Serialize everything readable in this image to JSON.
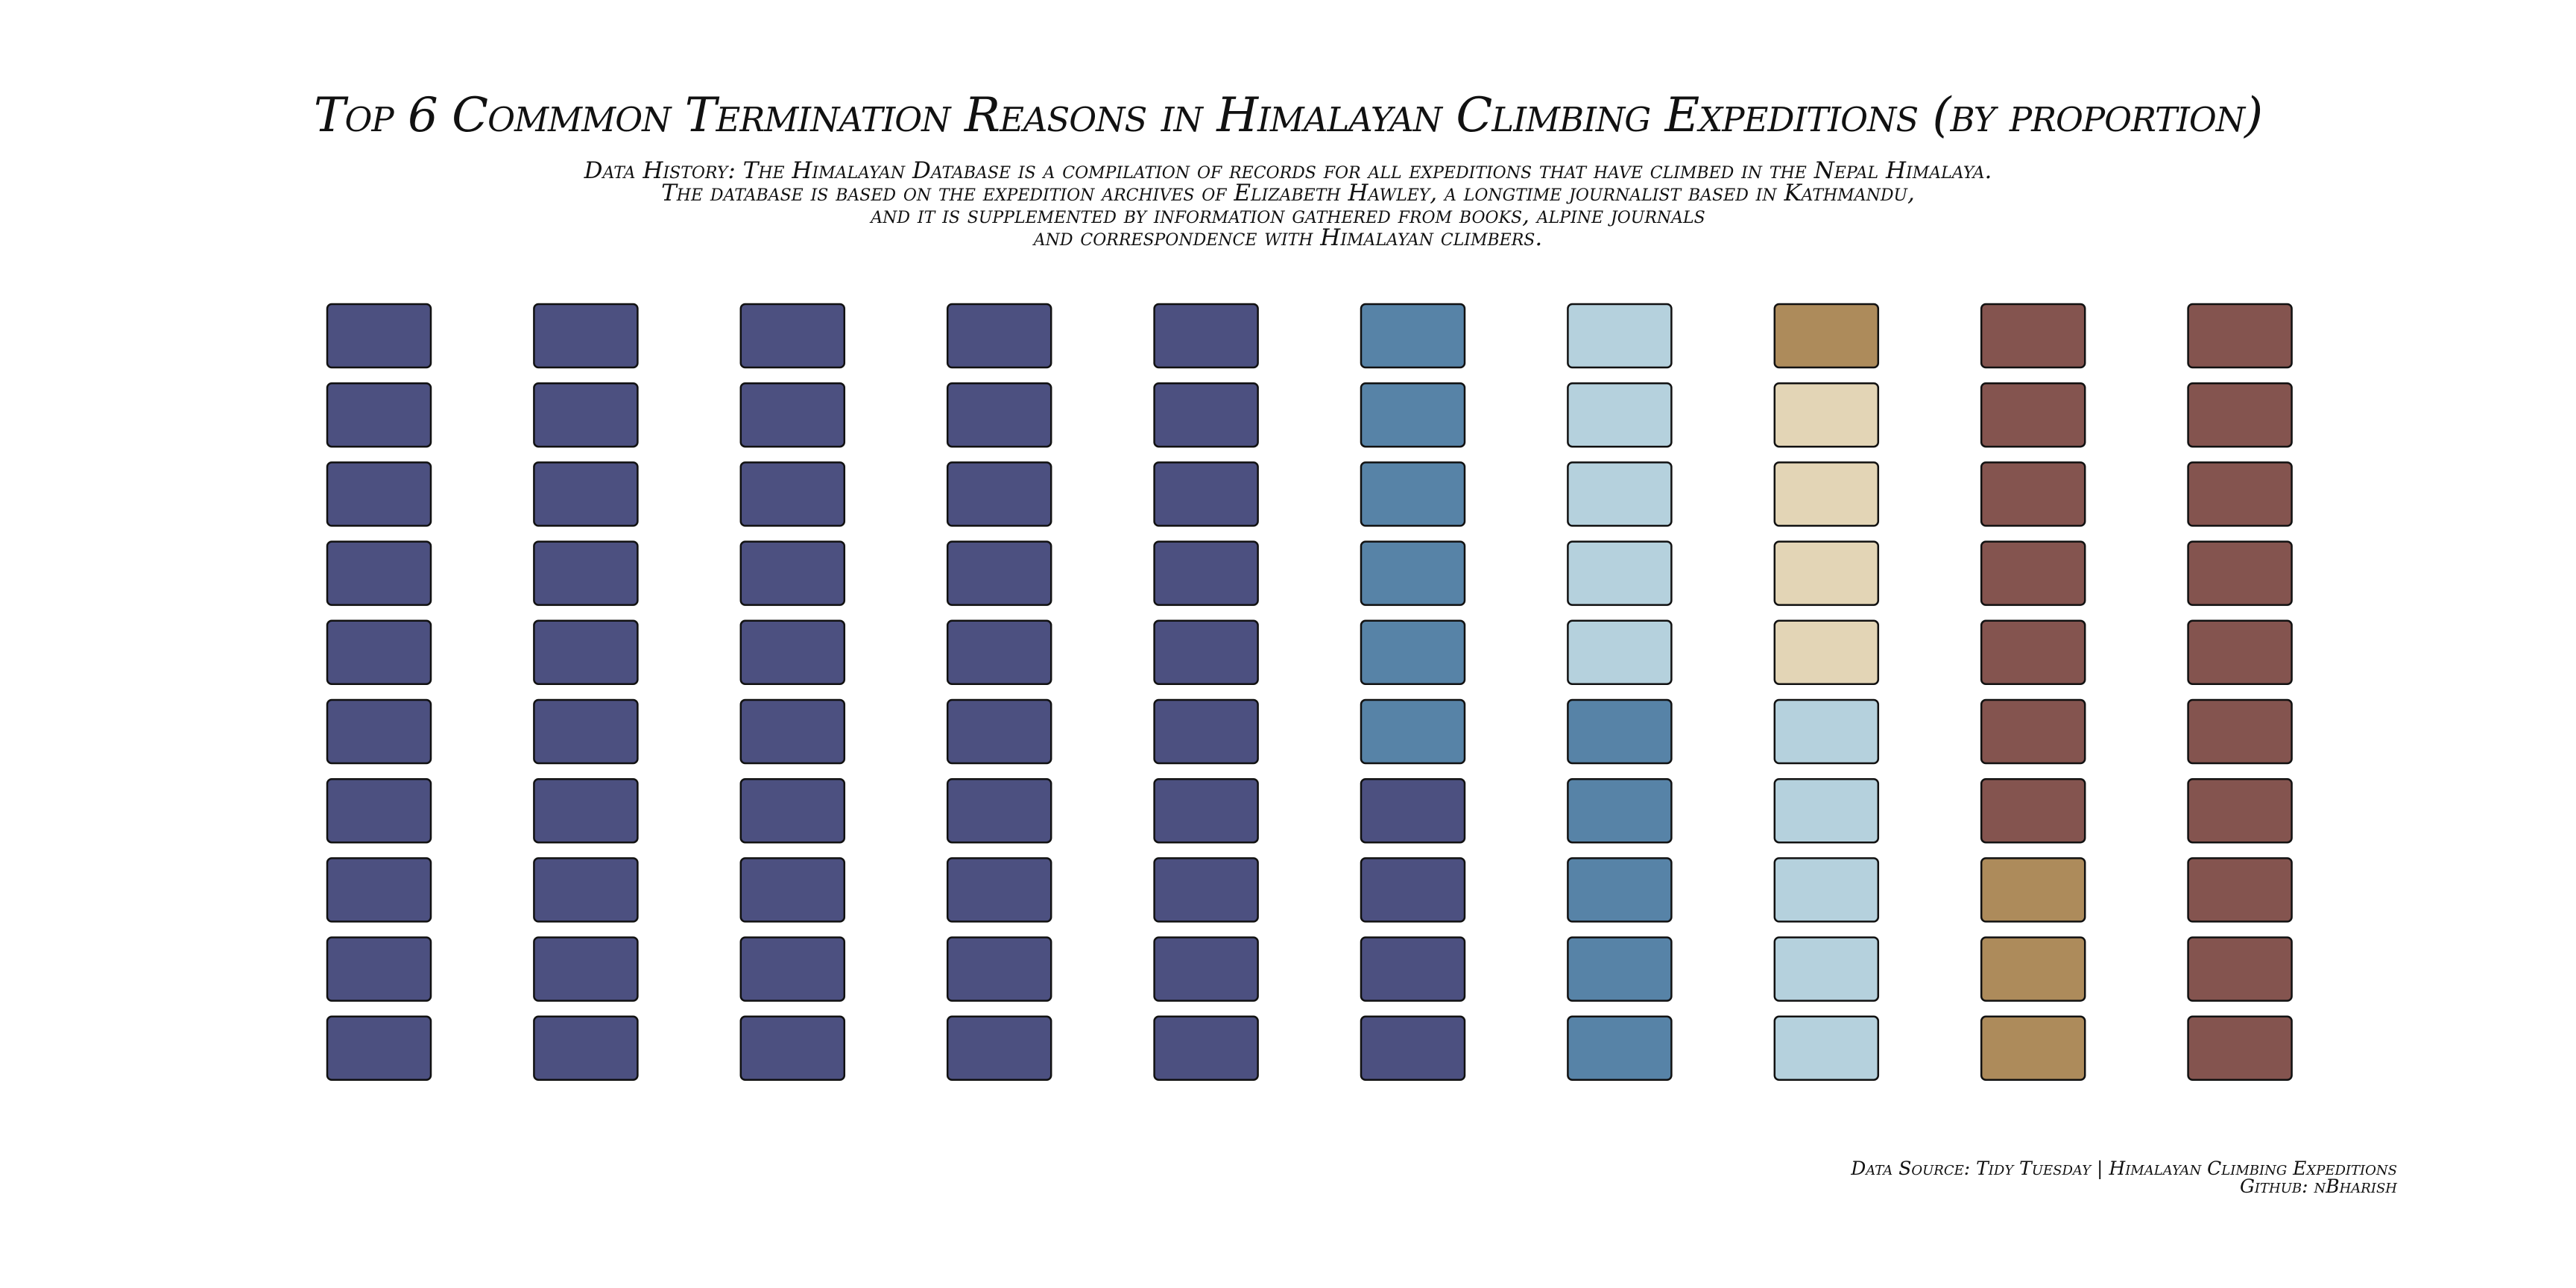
{
  "chart_data": {
    "type": "waffle",
    "title": "Top 6 Commmon Termination Reasons in Himalayan Climbing Expeditions (by proportion)",
    "subtitle": [
      "Data History: The Himalayan Database is a compilation of records for all expeditions that have climbed in the Nepal Himalaya.",
      "The database is based on the expedition archives of Elizabeth Hawley, a longtime journalist based in Kathmandu,",
      "and it is supplemented by information gathered from books, alpine journals",
      "and correspondence with Himalayan climbers."
    ],
    "grid": {
      "rows": 10,
      "columns": 10,
      "total": 100
    },
    "fill_order": "column-major from bottom-left",
    "series": [
      {
        "color": "#4c5080",
        "value": 54
      },
      {
        "color": "#5783a7",
        "value": 11
      },
      {
        "color": "#b5d1dd",
        "value": 10
      },
      {
        "color": "#e3d5b6",
        "value": 4
      },
      {
        "color": "#ad8b5b",
        "value": 4
      },
      {
        "color": "#84544f",
        "value": 17
      }
    ],
    "legend": "none",
    "tile_border_color": "#111111"
  },
  "caption": [
    "Data Source: Tidy Tuesday | Himalayan Climbing Expeditions",
    "Github: nBharish"
  ]
}
